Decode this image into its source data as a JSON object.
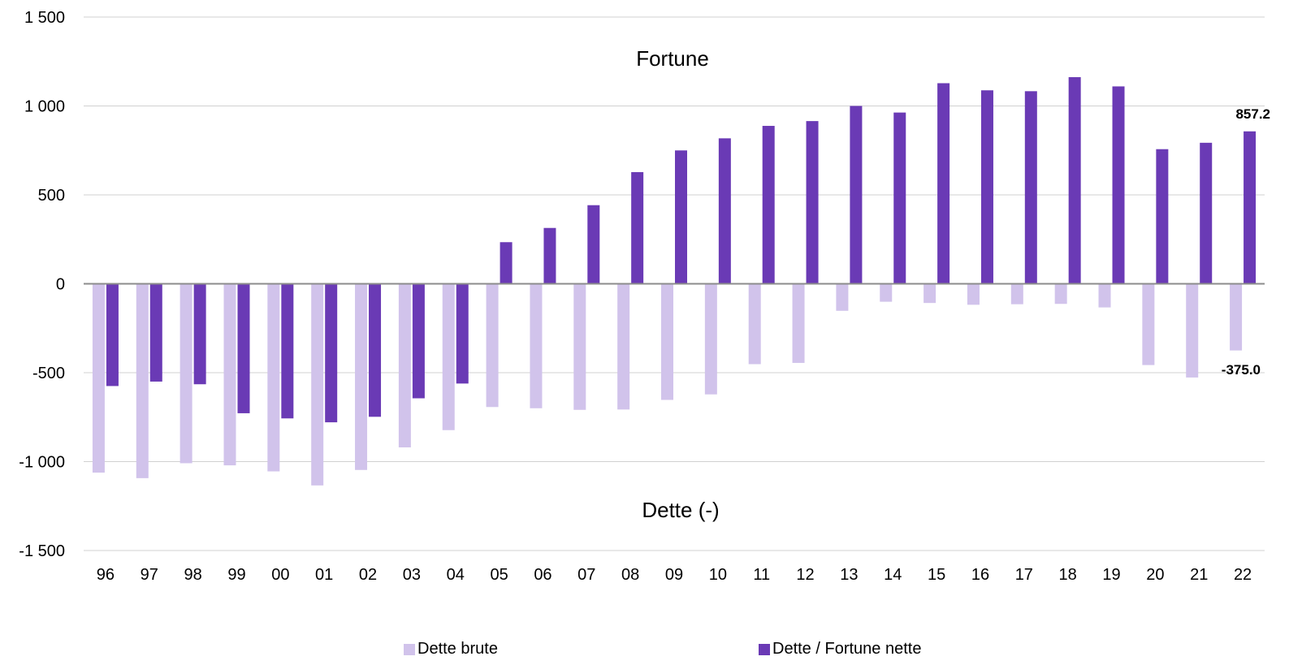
{
  "chart_data": {
    "type": "bar",
    "categories": [
      "96",
      "97",
      "98",
      "99",
      "00",
      "01",
      "02",
      "03",
      "04",
      "05",
      "06",
      "07",
      "08",
      "09",
      "10",
      "11",
      "12",
      "13",
      "14",
      "15",
      "16",
      "17",
      "18",
      "19",
      "20",
      "21",
      "22"
    ],
    "series": [
      {
        "name": "Dette brute",
        "color": "#d1c3eb",
        "values": [
          -1062,
          -1093,
          -1009,
          -1021,
          -1055,
          -1134,
          -1047,
          -920,
          -823,
          -693,
          -700,
          -709,
          -707,
          -653,
          -622,
          -452,
          -445,
          -152,
          -101,
          -108,
          -118,
          -115,
          -113,
          -133,
          -457,
          -527,
          -375.0
        ]
      },
      {
        "name": "Dette / Fortune nette",
        "color": "#6a3ab5",
        "values": [
          -575,
          -550,
          -565,
          -728,
          -757,
          -779,
          -748,
          -644,
          -561,
          234,
          314,
          442,
          628,
          750,
          818,
          888,
          915,
          1000,
          963,
          1128,
          1088,
          1083,
          1162,
          1110,
          757,
          793,
          857.2
        ]
      }
    ],
    "ylim": [
      -1500,
      1500
    ],
    "yticks": [
      -1500,
      -1000,
      -500,
      0,
      500,
      1000,
      1500
    ],
    "ytick_labels": [
      "-1 500",
      "-1 000",
      "-500",
      "0",
      "500",
      "1 000",
      "1 500"
    ],
    "annotations": {
      "upper": "Fortune",
      "lower": "Dette (-)"
    },
    "data_labels": {
      "last_net": "857.2",
      "last_gross": "-375.0"
    },
    "grid": true,
    "legend_position": "bottom"
  }
}
